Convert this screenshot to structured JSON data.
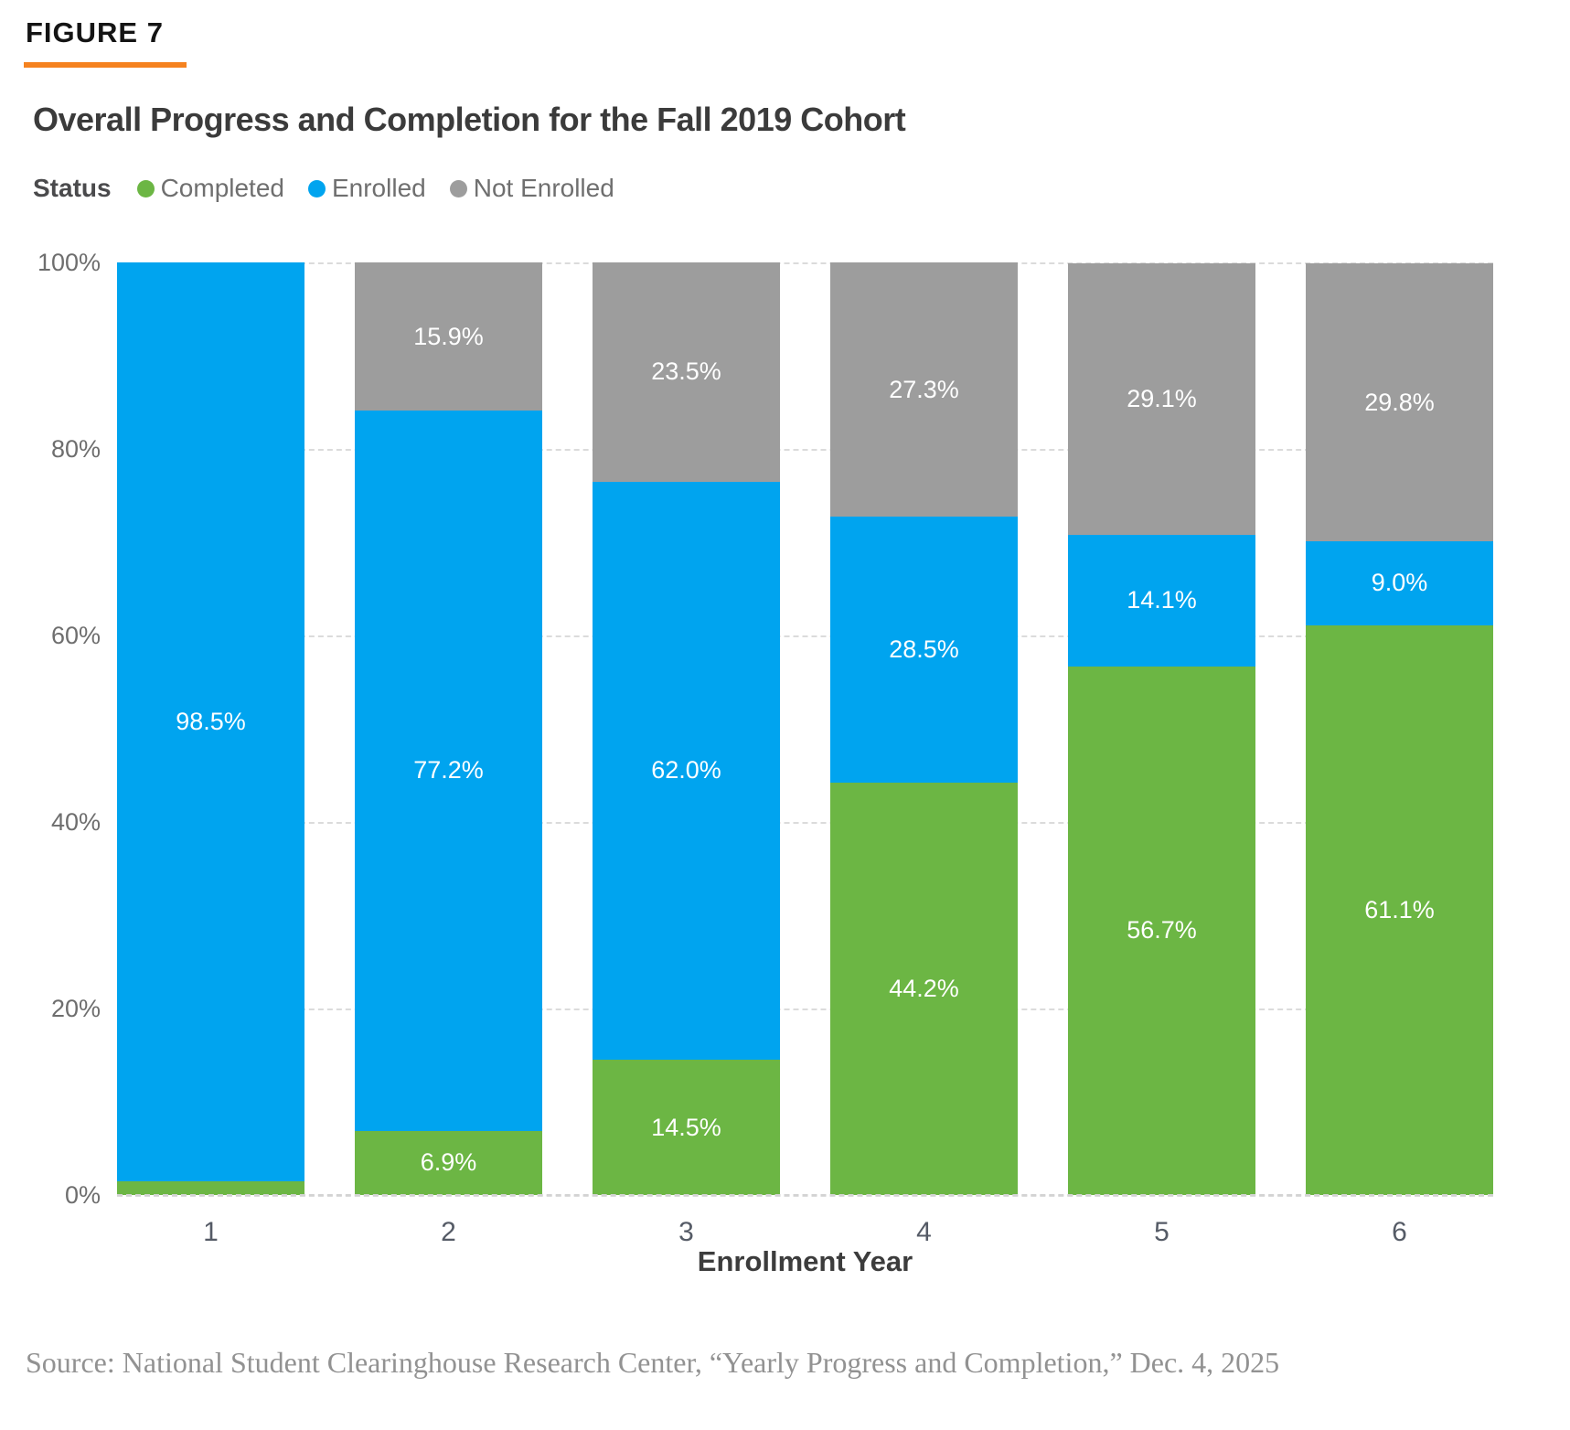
{
  "figure_label": "FIGURE 7",
  "title": "Overall Progress and Completion for the Fall 2019 Cohort",
  "legend": {
    "title": "Status",
    "items": [
      {
        "label": "Completed",
        "color": "#6CB644"
      },
      {
        "label": "Enrolled",
        "color": "#00A4EF"
      },
      {
        "label": "Not Enrolled",
        "color": "#9D9D9D"
      }
    ]
  },
  "chart_data": {
    "type": "bar",
    "stacked": true,
    "title": "Overall Progress and Completion for the Fall 2019 Cohort",
    "xlabel": "Enrollment Year",
    "ylabel": "",
    "ylim": [
      0,
      100
    ],
    "yticks_top_to_bottom": [
      "100%",
      "80%",
      "60%",
      "40%",
      "20%",
      "0%"
    ],
    "grid": "dashed horizontal",
    "legend_position": "top",
    "categories": [
      "1",
      "2",
      "3",
      "4",
      "5",
      "6"
    ],
    "series": [
      {
        "name": "Completed",
        "color": "#6CB644",
        "values": [
          1.5,
          6.9,
          14.5,
          44.2,
          56.7,
          61.1
        ],
        "labels": [
          "",
          "6.9%",
          "14.5%",
          "44.2%",
          "56.7%",
          "61.1%"
        ]
      },
      {
        "name": "Enrolled",
        "color": "#00A4EF",
        "values": [
          98.5,
          77.2,
          62.0,
          28.5,
          14.1,
          9.0
        ],
        "labels": [
          "98.5%",
          "77.2%",
          "62.0%",
          "28.5%",
          "14.1%",
          "9.0%"
        ]
      },
      {
        "name": "Not Enrolled",
        "color": "#9D9D9D",
        "values": [
          0,
          15.9,
          23.5,
          27.3,
          29.1,
          29.8
        ],
        "labels": [
          "",
          "15.9%",
          "23.5%",
          "27.3%",
          "29.1%",
          "29.8%"
        ]
      }
    ]
  },
  "accent_color": "#F5821F",
  "source": "Source: National Student Clearinghouse Research Center, “Yearly Progress and Completion,” Dec. 4, 2025"
}
